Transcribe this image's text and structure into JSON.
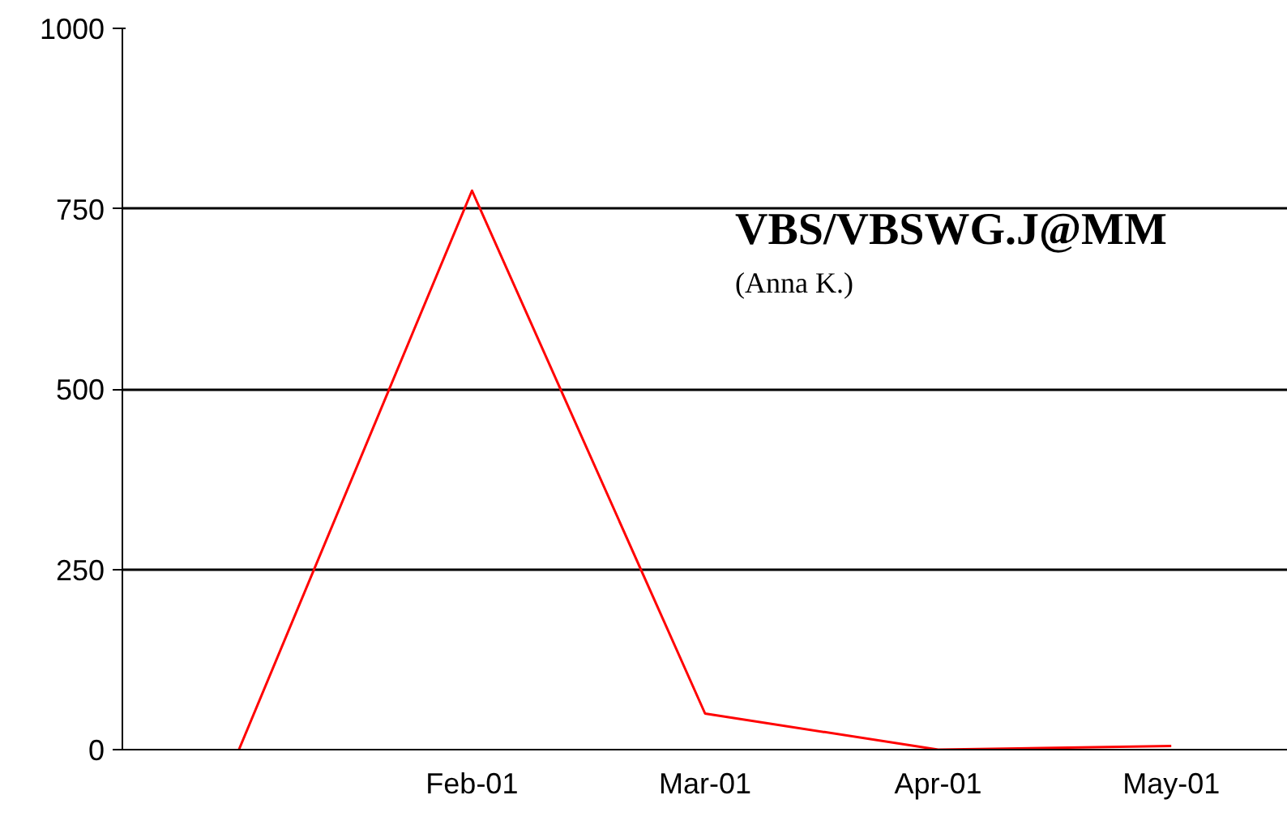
{
  "chart_data": {
    "type": "line",
    "title": "VBS/VBSWG.J@MM",
    "subtitle": "(Anna K.)",
    "categories": [
      null,
      "Feb-01",
      "Mar-01",
      "Apr-01",
      "May-01"
    ],
    "series": [
      {
        "color": "#ff0000",
        "values": [
          0,
          775,
          50,
          0,
          5
        ]
      }
    ],
    "ylim": [
      0,
      1000
    ],
    "yticks": [
      0,
      250,
      500,
      750,
      1000
    ],
    "grid": "y",
    "marker": "none",
    "line_style": "solid"
  }
}
